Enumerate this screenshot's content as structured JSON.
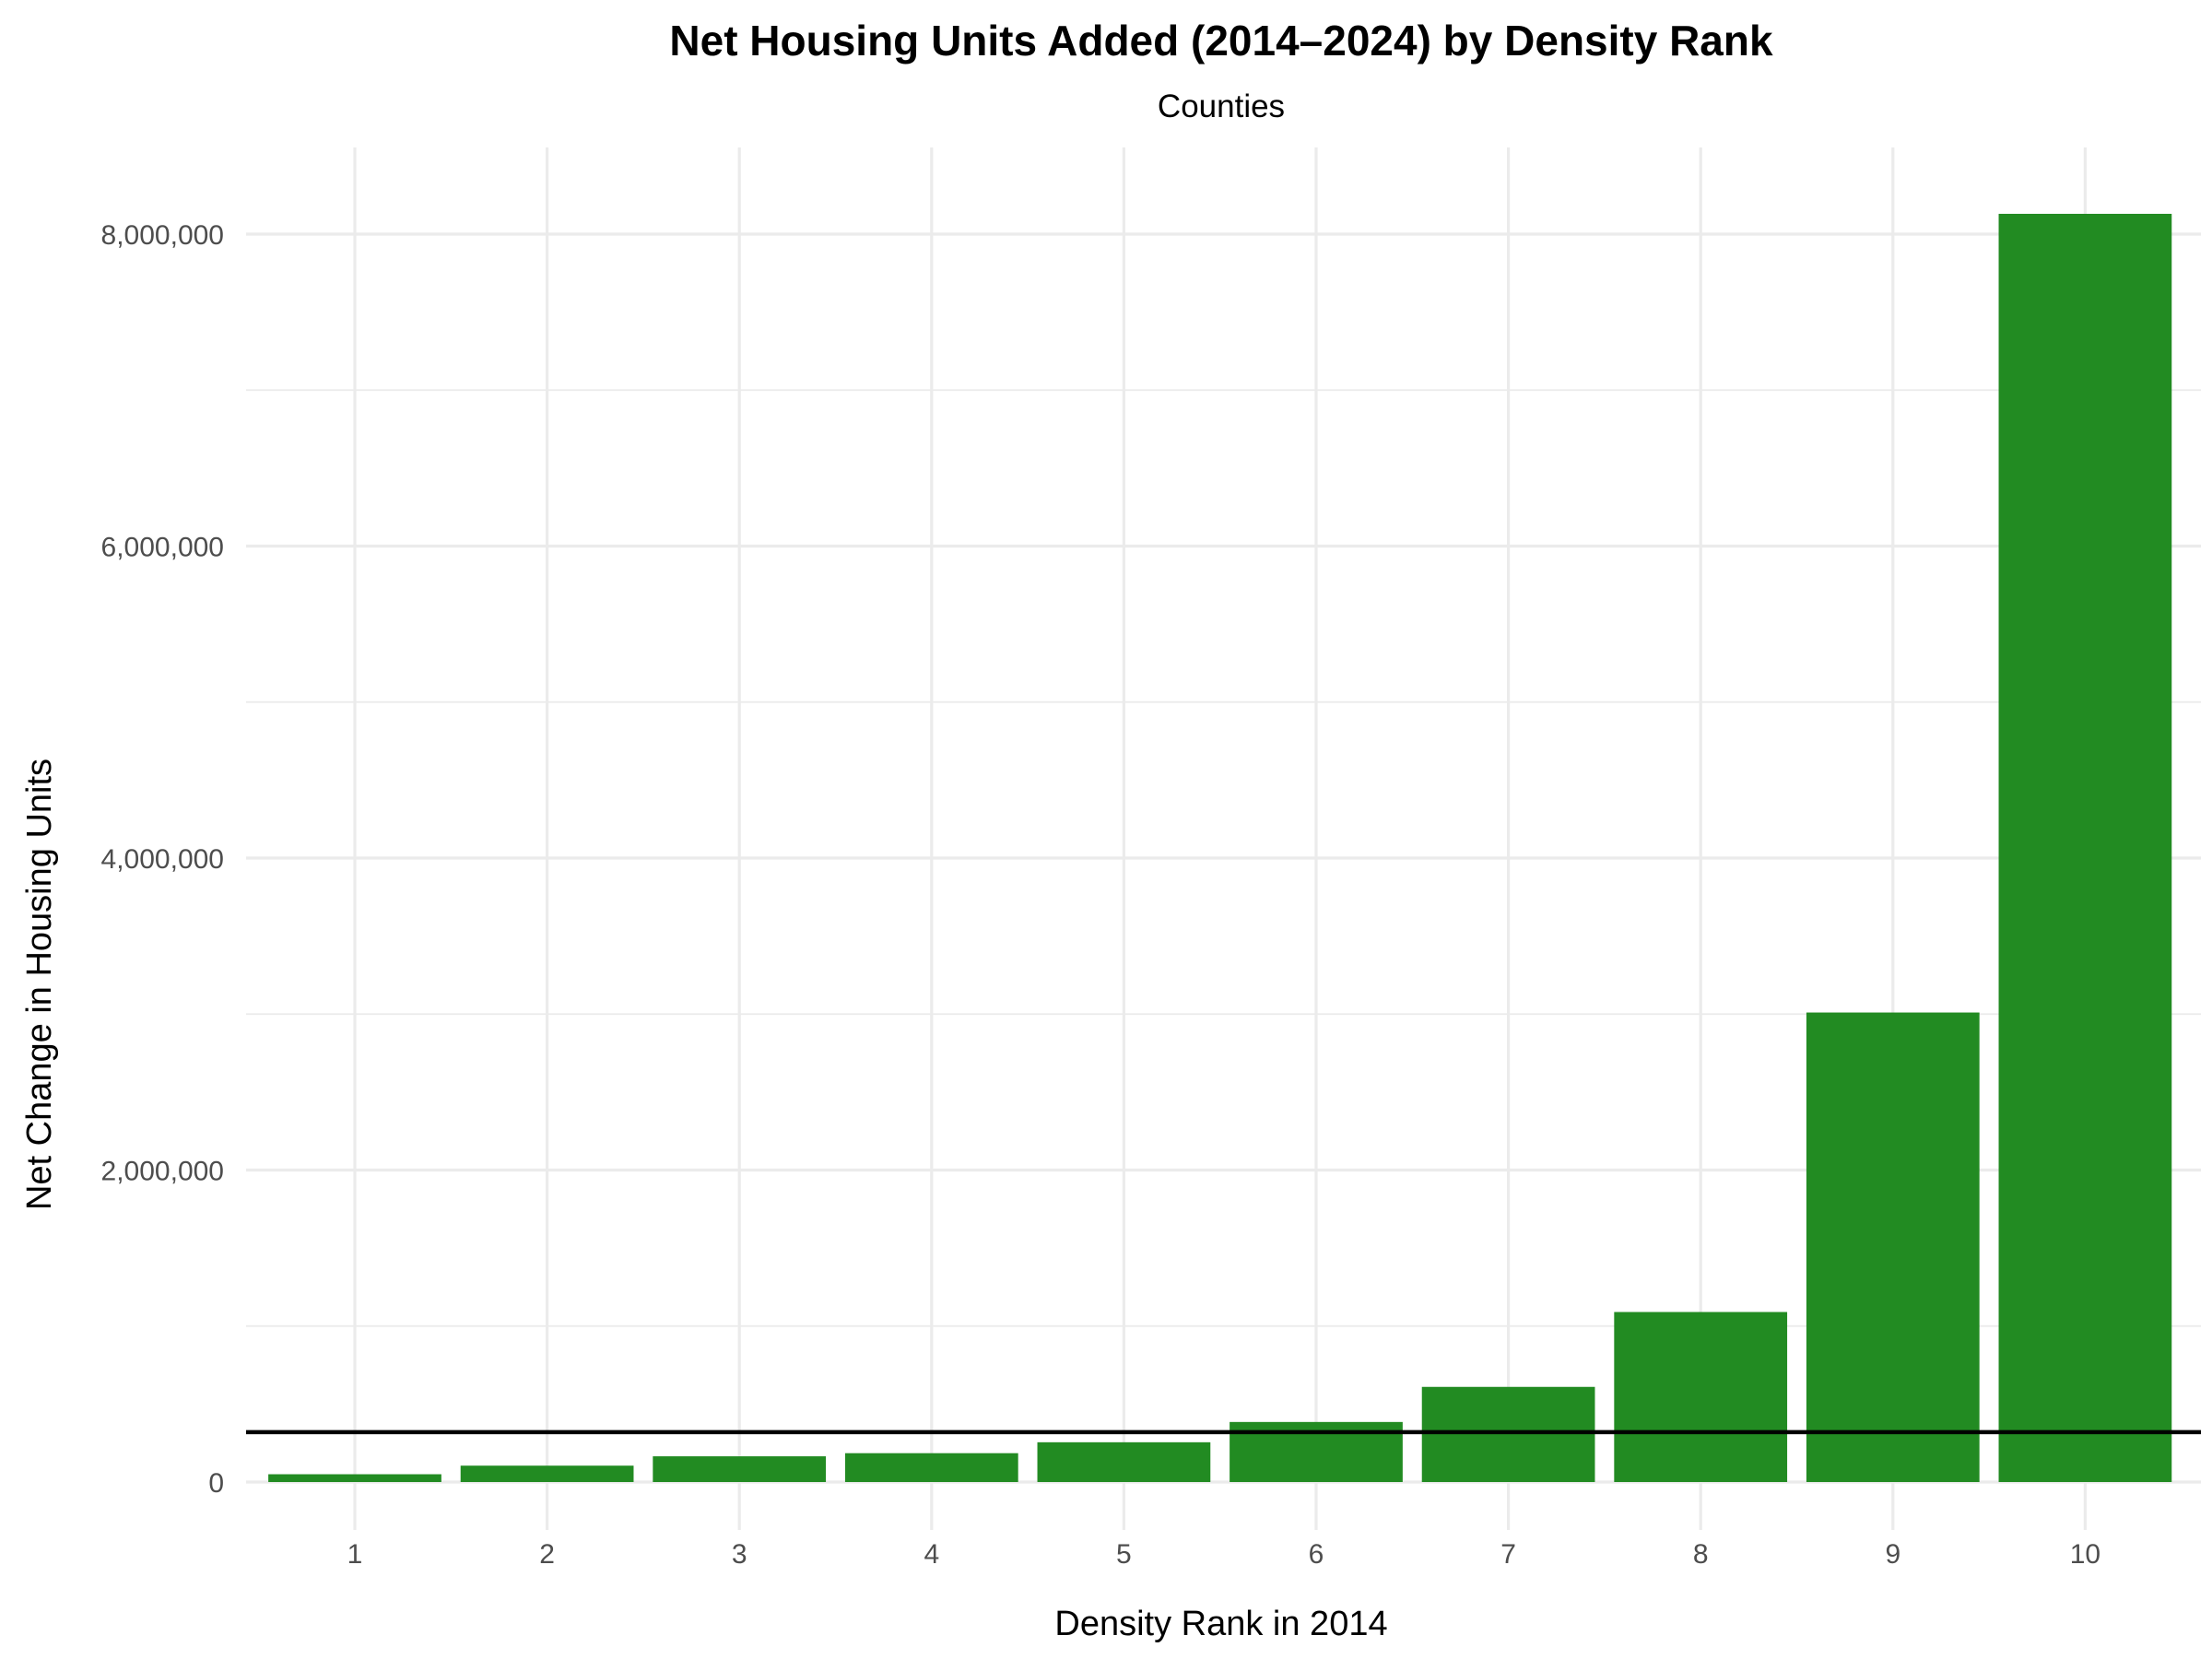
{
  "chart_data": {
    "type": "bar",
    "title": "Net Housing Units Added (2014–2024) by Density Rank",
    "subtitle": "Counties",
    "xlabel": "Density Rank in 2014",
    "ylabel": "Net Change in Housing Units",
    "categories": [
      "1",
      "2",
      "3",
      "4",
      "5",
      "6",
      "7",
      "8",
      "9",
      "10"
    ],
    "values": [
      50000,
      105000,
      165000,
      185000,
      255000,
      385000,
      610000,
      1090000,
      3010000,
      8130000
    ],
    "reference_line": 320000,
    "ylim": [
      0,
      8500000
    ],
    "yticks": [
      0,
      2000000,
      4000000,
      6000000,
      8000000
    ],
    "ytick_labels": [
      "0",
      "2,000,000",
      "4,000,000",
      "6,000,000",
      "8,000,000"
    ],
    "grid": true,
    "bar_color": "#228B22",
    "reference_line_color": "#000000"
  }
}
